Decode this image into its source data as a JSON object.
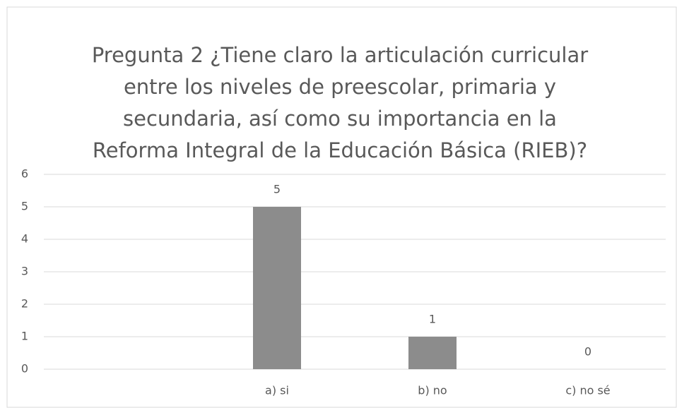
{
  "chart_data": {
    "type": "bar",
    "title": [
      "Pregunta 2  ¿Tiene claro la articulación curricular",
      "entre los niveles de preescolar, primaria y",
      "secundaria, así como su importancia en la",
      "Reforma Integral de la Educación Básica (RIEB)?"
    ],
    "categories": [
      null,
      "a) si",
      "b) no",
      "c) no sé"
    ],
    "values": [
      null,
      5,
      1,
      0
    ],
    "color": "#8c8c8c",
    "ylim": [
      0,
      6
    ],
    "yticks": [
      0,
      1,
      2,
      3,
      4,
      5,
      6
    ],
    "grid": true
  }
}
